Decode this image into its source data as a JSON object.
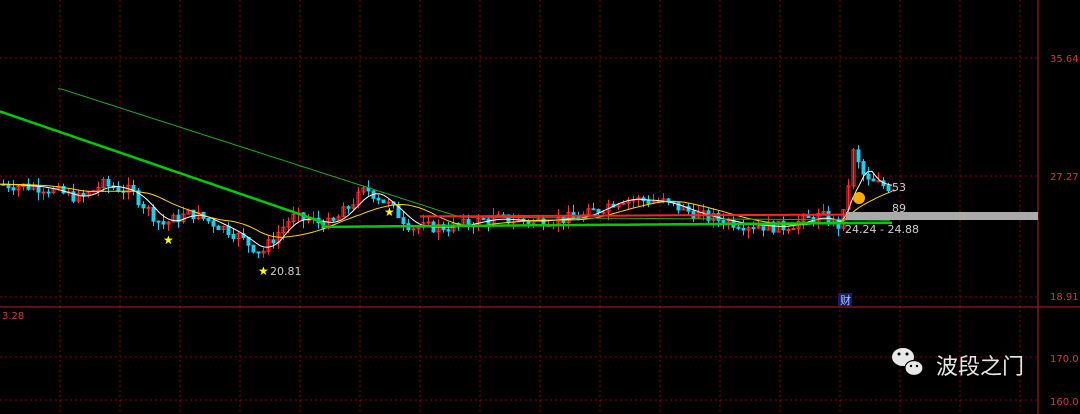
{
  "chart_data": {
    "type": "candlestick",
    "price_axis_labels": [
      "35.64",
      "27.27",
      "18.91"
    ],
    "volume_axis_labels": [
      "170.0",
      "160.0"
    ],
    "indicator_label": "3.28",
    "low_marker": "20.81",
    "range_label": "24.24 - 24.88",
    "label_53": "53",
    "label_89": "89",
    "event_marker": "财",
    "colors": {
      "up": "#ff3333",
      "down": "#22ccee",
      "ma_short": "#ffffff",
      "ma_mid": "#ffd700",
      "ma_long": "#00cc00",
      "ma_longest": "#22aa22",
      "grid": "#8b0000",
      "axis_text": "#d23a3a",
      "star": "#ffff00",
      "band": "#aaaaaa"
    }
  },
  "watermark": {
    "text": "波段之门",
    "icon": "wechat-icon"
  }
}
